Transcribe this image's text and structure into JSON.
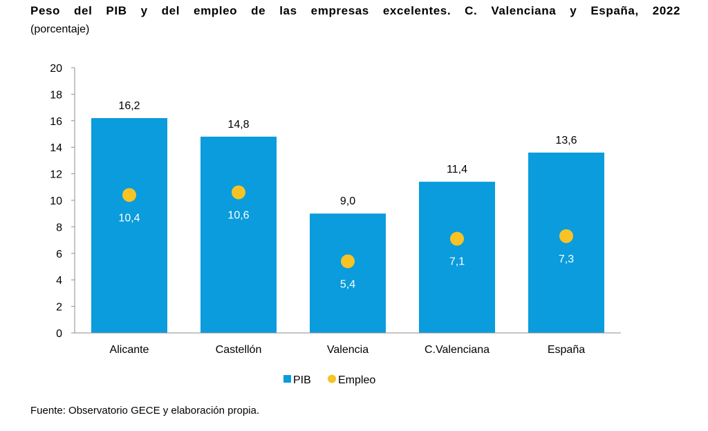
{
  "title": "Peso del PIB y del empleo de las empresas excelentes. C. Valenciana y España, 2022",
  "subtitle": "(porcentaje)",
  "source": "Fuente: Observatorio GECE y elaboración propia.",
  "colors": {
    "pib": "#0a9cdc",
    "empleo": "#f7c325",
    "axis": "#8c8c8c"
  },
  "chart_data": {
    "type": "bar",
    "categories": [
      "Alicante",
      "Castellón",
      "Valencia",
      "C.Valenciana",
      "España"
    ],
    "series": [
      {
        "name": "PIB",
        "type": "bar",
        "values": [
          16.2,
          14.8,
          9.0,
          11.4,
          13.6
        ],
        "labels": [
          "16,2",
          "14,8",
          "9,0",
          "11,4",
          "13,6"
        ]
      },
      {
        "name": "Empleo",
        "type": "scatter",
        "values": [
          10.4,
          10.6,
          5.4,
          7.1,
          7.3
        ],
        "labels": [
          "10,4",
          "10,6",
          "5,4",
          "7,1",
          "7,3"
        ]
      }
    ],
    "ylim": [
      0,
      20
    ],
    "yticks": [
      "0",
      "2",
      "4",
      "6",
      "8",
      "10",
      "12",
      "14",
      "16",
      "18",
      "20"
    ],
    "legend": "bottom-center",
    "grid": false
  }
}
